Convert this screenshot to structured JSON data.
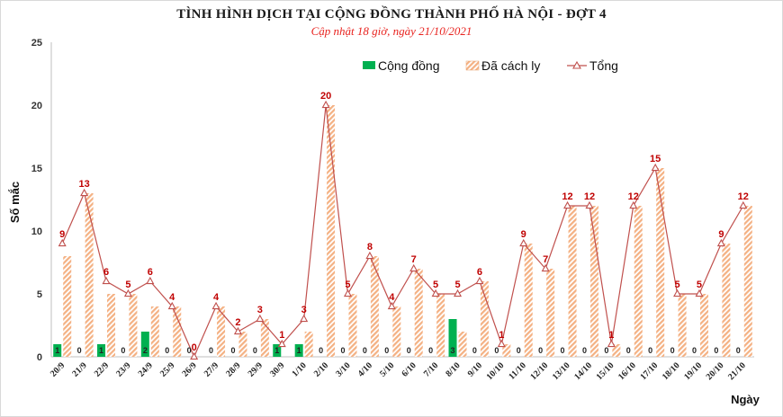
{
  "chart_data": {
    "type": "bar",
    "title": "TÌNH HÌNH DỊCH TẠI CỘNG ĐỒNG THÀNH PHỐ HÀ NỘI - ĐỢT 4",
    "subtitle": "Cập nhật 18 giờ, ngày 21/10/2021",
    "xlabel": "Ngày",
    "ylabel": "Số mắc",
    "ylim": [
      0,
      25
    ],
    "yticks": [
      0,
      5,
      10,
      15,
      20,
      25
    ],
    "grid": false,
    "legend_position": "top",
    "categories": [
      "20/9",
      "21/9",
      "22/9",
      "23/9",
      "24/9",
      "25/9",
      "26/9",
      "27/9",
      "28/9",
      "29/9",
      "30/9",
      "1/10",
      "2/10",
      "3/10",
      "4/10",
      "5/10",
      "6/10",
      "7/10",
      "8/10",
      "9/10",
      "10/10",
      "11/10",
      "12/10",
      "13/10",
      "14/10",
      "15/10",
      "16/10",
      "17/10",
      "18/10",
      "19/10",
      "20/10",
      "21/10"
    ],
    "series": [
      {
        "name": "Cộng đồng",
        "kind": "bar",
        "color": "#00b050",
        "values": [
          1,
          0,
          1,
          0,
          2,
          0,
          0,
          0,
          0,
          0,
          1,
          1,
          0,
          0,
          0,
          0,
          0,
          0,
          3,
          0,
          0,
          0,
          0,
          0,
          0,
          0,
          0,
          0,
          0,
          0,
          0,
          0
        ]
      },
      {
        "name": "Đã cách ly",
        "kind": "bar-hatched",
        "color": "#f4b183",
        "values": [
          8,
          13,
          5,
          5,
          4,
          4,
          0,
          4,
          2,
          3,
          0,
          2,
          20,
          5,
          8,
          4,
          7,
          5,
          2,
          6,
          1,
          9,
          7,
          12,
          12,
          1,
          12,
          15,
          5,
          5,
          9,
          12
        ]
      },
      {
        "name": "Tổng",
        "kind": "line",
        "color": "#c0504d",
        "values": [
          9,
          13,
          6,
          5,
          6,
          4,
          0,
          4,
          2,
          3,
          1,
          3,
          20,
          5,
          8,
          4,
          7,
          5,
          5,
          6,
          1,
          9,
          7,
          12,
          12,
          1,
          12,
          15,
          5,
          5,
          9,
          12
        ]
      }
    ]
  }
}
